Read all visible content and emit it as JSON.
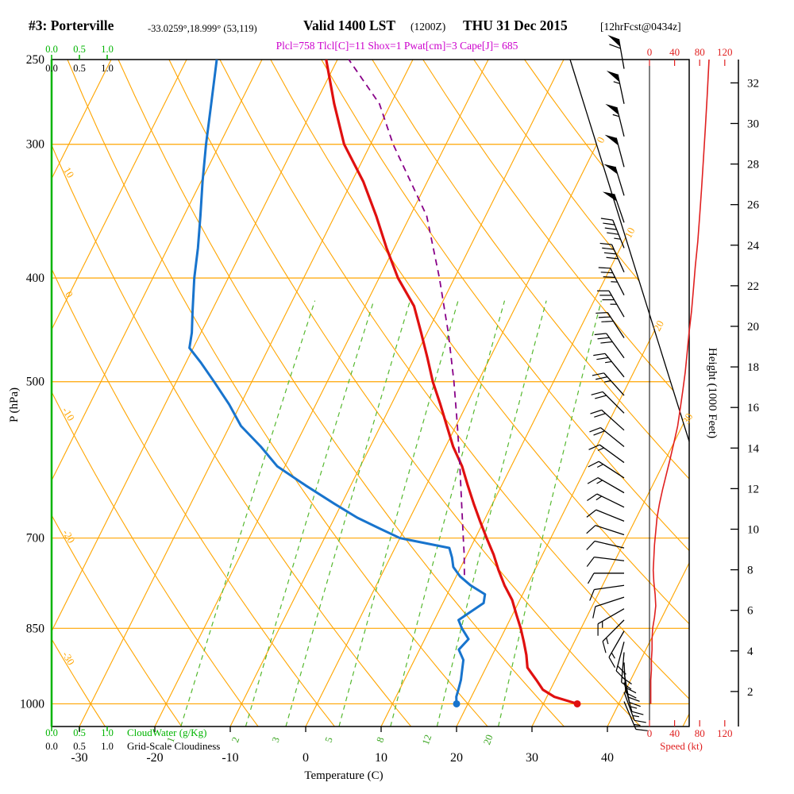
{
  "header": {
    "station": "#3: Porterville",
    "coords": "-33.0259°,18.999° (53,119)",
    "valid": "Valid 1400 LST",
    "zulu": "(1200Z)",
    "date": "THU 31 Dec 2015",
    "fcst": "[12hrFcst@0434z]",
    "indices": "Plcl=758 Tlcl[C]=11 Shox=1 Pwat[cm]=3 Cape[J]= 685"
  },
  "axes": {
    "pressure_label": "P (hPa)",
    "pressure_ticks": [
      250,
      300,
      400,
      500,
      700,
      850,
      1000
    ],
    "temp_label": "Temperature (C)",
    "temp_ticks": [
      -30,
      -20,
      -10,
      0,
      10,
      20,
      30,
      40
    ],
    "height_label": "Height (1000 Feet)",
    "height_ticks": [
      2,
      4,
      6,
      8,
      10,
      12,
      14,
      16,
      18,
      20,
      22,
      24,
      26,
      28,
      30,
      32
    ],
    "speed_label": "Speed (kt)",
    "speed_ticks": [
      0,
      40,
      80,
      120
    ],
    "cloud_scale": [
      "0.0",
      "0.5",
      "1.0"
    ],
    "cloudwater_label": "CloudWater (g/Kg)",
    "gridscale_label": "Grid-Scale Cloudiness"
  },
  "grid": {
    "isotherms_C": {
      "min": -110,
      "max": 50,
      "step": 10
    },
    "dry_adiabats_C": {
      "min": -40,
      "max": 130,
      "step": 10
    },
    "isobar_lines_hPa": [
      300,
      400,
      500,
      700,
      850,
      1000
    ],
    "mixing_ratio_g_kg": [
      1,
      2,
      3,
      5,
      8,
      12,
      20
    ],
    "isotherm_edge_labels": [
      0,
      10,
      20,
      30
    ],
    "adiabat_edge_labels": [
      10,
      0,
      -10,
      -20,
      -30
    ]
  },
  "colors": {
    "grid_orange": "#ffa500",
    "axis_green": "#00b400",
    "mixing_green": "#55b82e",
    "mixing_label_green": "#3aa520",
    "temperature_red": "#e01010",
    "dewpoint_blue": "#1874cd",
    "parcel_purple": "#880088",
    "indices_magenta": "#cc00cc",
    "speed_red": "#e02020",
    "black": "#000000"
  },
  "chart_data": {
    "type": "skewt-log-p-sounding",
    "title": "#3: Porterville Valid 1400 LST (1200Z) THU 31 Dec 2015",
    "pressure_range_hPa": [
      250,
      1050
    ],
    "temp_axis_range_C": [
      -30,
      40
    ],
    "indices": {
      "Plcl": 758,
      "Tlcl_C": 11,
      "Shox": 1,
      "Pwat_cm": 3,
      "Cape_J": 685
    },
    "temperature_profile": [
      [
        1000,
        34.5
      ],
      [
        985,
        31
      ],
      [
        970,
        29
      ],
      [
        950,
        27.5
      ],
      [
        925,
        25.5
      ],
      [
        900,
        24.5
      ],
      [
        875,
        23.3
      ],
      [
        850,
        22
      ],
      [
        825,
        20.5
      ],
      [
        800,
        19
      ],
      [
        775,
        17
      ],
      [
        750,
        15.2
      ],
      [
        725,
        13.5
      ],
      [
        700,
        11.5
      ],
      [
        675,
        9.5
      ],
      [
        650,
        7.5
      ],
      [
        625,
        5.5
      ],
      [
        600,
        3.5
      ],
      [
        575,
        1
      ],
      [
        550,
        -1.2
      ],
      [
        525,
        -3.5
      ],
      [
        500,
        -6
      ],
      [
        475,
        -8.3
      ],
      [
        450,
        -10.8
      ],
      [
        425,
        -13.5
      ],
      [
        400,
        -17.5
      ],
      [
        375,
        -21
      ],
      [
        350,
        -24.5
      ],
      [
        325,
        -28.5
      ],
      [
        300,
        -33.5
      ],
      [
        275,
        -37.5
      ],
      [
        250,
        -41.5
      ]
    ],
    "dewpoint_profile": [
      [
        1000,
        18.5
      ],
      [
        985,
        18
      ],
      [
        970,
        17.8
      ],
      [
        950,
        17.5
      ],
      [
        930,
        17
      ],
      [
        910,
        16.5
      ],
      [
        890,
        15.2
      ],
      [
        870,
        15.8
      ],
      [
        850,
        14.2
      ],
      [
        835,
        13.2
      ],
      [
        820,
        14.3
      ],
      [
        805,
        15.4
      ],
      [
        790,
        15
      ],
      [
        775,
        12.5
      ],
      [
        760,
        10.5
      ],
      [
        745,
        9
      ],
      [
        730,
        8.2
      ],
      [
        715,
        7.2
      ],
      [
        700,
        0
      ],
      [
        685,
        -3.5
      ],
      [
        670,
        -7
      ],
      [
        650,
        -11
      ],
      [
        625,
        -16
      ],
      [
        600,
        -21
      ],
      [
        575,
        -24.5
      ],
      [
        550,
        -28.5
      ],
      [
        525,
        -31.5
      ],
      [
        500,
        -35
      ],
      [
        480,
        -38
      ],
      [
        465,
        -40.5
      ],
      [
        450,
        -41.2
      ],
      [
        430,
        -42.5
      ],
      [
        400,
        -44.5
      ],
      [
        375,
        -46
      ],
      [
        350,
        -47.8
      ],
      [
        325,
        -49.8
      ],
      [
        300,
        -51.8
      ],
      [
        275,
        -53.8
      ],
      [
        250,
        -56
      ]
    ],
    "parcel_path": [
      [
        758,
        11
      ],
      [
        725,
        9.6
      ],
      [
        700,
        8.4
      ],
      [
        650,
        5.9
      ],
      [
        600,
        3.2
      ],
      [
        550,
        0.2
      ],
      [
        500,
        -3.2
      ],
      [
        450,
        -7.2
      ],
      [
        400,
        -12
      ],
      [
        350,
        -17.8
      ],
      [
        300,
        -27
      ],
      [
        275,
        -31.5
      ],
      [
        250,
        -38.5
      ]
    ],
    "winds": [
      [
        255,
        60,
        350
      ],
      [
        275,
        55,
        348
      ],
      [
        295,
        55,
        346
      ],
      [
        315,
        50,
        345
      ],
      [
        335,
        50,
        343
      ],
      [
        355,
        50,
        341
      ],
      [
        375,
        45,
        338
      ],
      [
        395,
        40,
        336
      ],
      [
        415,
        35,
        333
      ],
      [
        435,
        35,
        330
      ],
      [
        455,
        30,
        327
      ],
      [
        475,
        30,
        324
      ],
      [
        495,
        25,
        321
      ],
      [
        515,
        25,
        318
      ],
      [
        535,
        20,
        315
      ],
      [
        555,
        20,
        312
      ],
      [
        575,
        20,
        309
      ],
      [
        595,
        15,
        306
      ],
      [
        615,
        15,
        303
      ],
      [
        635,
        15,
        300
      ],
      [
        655,
        15,
        296
      ],
      [
        675,
        10,
        292
      ],
      [
        695,
        10,
        288
      ],
      [
        715,
        10,
        283
      ],
      [
        735,
        10,
        277
      ],
      [
        755,
        10,
        270
      ],
      [
        775,
        10,
        262
      ],
      [
        795,
        10,
        252
      ],
      [
        815,
        15,
        240
      ],
      [
        835,
        15,
        225
      ],
      [
        855,
        15,
        210
      ],
      [
        875,
        20,
        195
      ],
      [
        895,
        20,
        185
      ],
      [
        915,
        20,
        177
      ],
      [
        935,
        20,
        170
      ],
      [
        955,
        15,
        165
      ],
      [
        975,
        15,
        160
      ],
      [
        995,
        15,
        157
      ]
    ],
    "wind_speed_profile_kt": [
      [
        250,
        95
      ],
      [
        270,
        92
      ],
      [
        290,
        89
      ],
      [
        310,
        86
      ],
      [
        330,
        83
      ],
      [
        350,
        80
      ],
      [
        370,
        77
      ],
      [
        390,
        73
      ],
      [
        410,
        70
      ],
      [
        430,
        67
      ],
      [
        450,
        63
      ],
      [
        470,
        60
      ],
      [
        490,
        57
      ],
      [
        510,
        53
      ],
      [
        530,
        49
      ],
      [
        550,
        45
      ],
      [
        570,
        39
      ],
      [
        590,
        33
      ],
      [
        610,
        27
      ],
      [
        630,
        21
      ],
      [
        650,
        16
      ],
      [
        670,
        12
      ],
      [
        690,
        10
      ],
      [
        710,
        8
      ],
      [
        730,
        7
      ],
      [
        750,
        6
      ],
      [
        770,
        7
      ],
      [
        790,
        9
      ],
      [
        810,
        10
      ],
      [
        830,
        8
      ],
      [
        850,
        5
      ],
      [
        870,
        4
      ],
      [
        890,
        4
      ],
      [
        910,
        3
      ],
      [
        930,
        3
      ],
      [
        950,
        2
      ],
      [
        970,
        2
      ],
      [
        1000,
        2
      ]
    ]
  }
}
